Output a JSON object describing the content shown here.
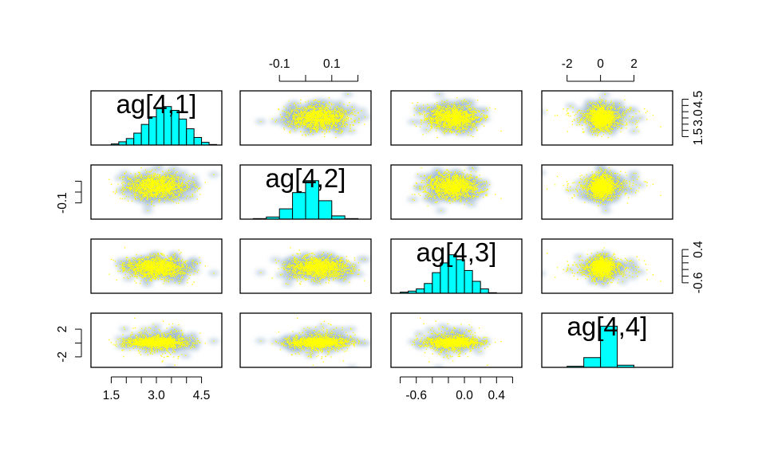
{
  "chart_data": {
    "type": "scatter-matrix",
    "variables": [
      "ag[4,1]",
      "ag[4,2]",
      "ag[4,3]",
      "ag[4,4]"
    ],
    "colors": {
      "histogram_fill": "#00ffff",
      "density_shade": "#9fb8d2",
      "points": "#ffff00",
      "frame": "#000000"
    },
    "ranges": [
      [
        1.0,
        5.0
      ],
      [
        -0.23,
        0.23
      ],
      [
        -0.85,
        0.65
      ],
      [
        -3.2,
        4.0
      ]
    ],
    "axes": [
      {
        "variable": "ag[4,1]",
        "side": "right",
        "ticks": [
          1.5,
          2.0,
          2.5,
          3.0,
          3.5,
          4.0,
          4.5
        ],
        "labels": [
          "1.5",
          "",
          "",
          "3.0",
          "",
          "",
          "4.5"
        ]
      },
      {
        "variable": "ag[4,1]",
        "side": "bottom",
        "ticks": [
          1.5,
          2.0,
          2.5,
          3.0,
          3.5,
          4.0,
          4.5
        ],
        "labels": [
          "1.5",
          "",
          "",
          "3.0",
          "",
          "",
          "4.5"
        ]
      },
      {
        "variable": "ag[4,2]",
        "side": "top",
        "ticks": [
          -0.1,
          0.0,
          0.1,
          0.2
        ],
        "labels": [
          "-0.1",
          "",
          "0.1",
          ""
        ]
      },
      {
        "variable": "ag[4,2]",
        "side": "left",
        "ticks": [
          -0.1,
          0.0,
          0.1
        ],
        "labels": [
          "-0.1",
          "",
          ""
        ]
      },
      {
        "variable": "ag[4,3]",
        "side": "bottom",
        "ticks": [
          -0.8,
          -0.6,
          -0.4,
          -0.2,
          0.0,
          0.2,
          0.4,
          0.6
        ],
        "labels": [
          "",
          "-0.6",
          "",
          "",
          "0.0",
          "",
          "0.4",
          ""
        ]
      },
      {
        "variable": "ag[4,3]",
        "side": "right",
        "ticks": [
          -0.6,
          -0.4,
          -0.2,
          0.0,
          0.2,
          0.4
        ],
        "labels": [
          "-0.6",
          "",
          "",
          "",
          "",
          "0.4"
        ]
      },
      {
        "variable": "ag[4,4]",
        "side": "top",
        "ticks": [
          -2,
          0,
          2
        ],
        "labels": [
          "-2",
          "0",
          "2"
        ]
      },
      {
        "variable": "ag[4,4]",
        "side": "left",
        "ticks": [
          -2,
          0,
          2
        ],
        "labels": [
          "-2",
          "",
          "2"
        ]
      }
    ],
    "histograms": [
      {
        "variable": "ag[4,1]",
        "breaks": [
          1.0,
          1.25,
          1.5,
          1.75,
          2.0,
          2.25,
          2.5,
          2.75,
          3.0,
          3.25,
          3.5,
          3.75,
          4.0,
          4.25,
          4.5,
          4.75,
          5.0
        ],
        "relative_heights": [
          0.0,
          0.0,
          0.02,
          0.06,
          0.12,
          0.22,
          0.38,
          0.52,
          0.68,
          0.71,
          0.64,
          0.48,
          0.3,
          0.14,
          0.05,
          0.01
        ]
      },
      {
        "variable": "ag[4,2]",
        "breaks": [
          -0.2,
          -0.15,
          -0.1,
          -0.05,
          0.0,
          0.05,
          0.1,
          0.15,
          0.2
        ],
        "relative_heights": [
          0.01,
          0.04,
          0.19,
          0.49,
          0.71,
          0.34,
          0.06,
          0.01
        ]
      },
      {
        "variable": "ag[4,3]",
        "breaks": [
          -0.8,
          -0.7,
          -0.6,
          -0.5,
          -0.4,
          -0.3,
          -0.2,
          -0.1,
          0.0,
          0.1,
          0.2,
          0.3,
          0.4
        ],
        "relative_heights": [
          0.02,
          0.04,
          0.08,
          0.18,
          0.38,
          0.56,
          0.71,
          0.62,
          0.42,
          0.22,
          0.08,
          0.01
        ]
      },
      {
        "variable": "ag[4,4]",
        "breaks": [
          -2.0,
          -1.0,
          0.0,
          1.0,
          2.0
        ],
        "relative_heights": [
          0.02,
          0.18,
          0.76,
          0.04
        ]
      }
    ],
    "distributions": [
      {
        "variable": "ag[4,1]",
        "center": 3.0,
        "sd": 0.5
      },
      {
        "variable": "ag[4,2]",
        "center": 0.05,
        "sd": 0.055
      },
      {
        "variable": "ag[4,3]",
        "center": -0.15,
        "sd": 0.17
      },
      {
        "variable": "ag[4,4]",
        "center": 0.1,
        "sd": 0.35,
        "tail_scale": 1.3
      }
    ]
  }
}
